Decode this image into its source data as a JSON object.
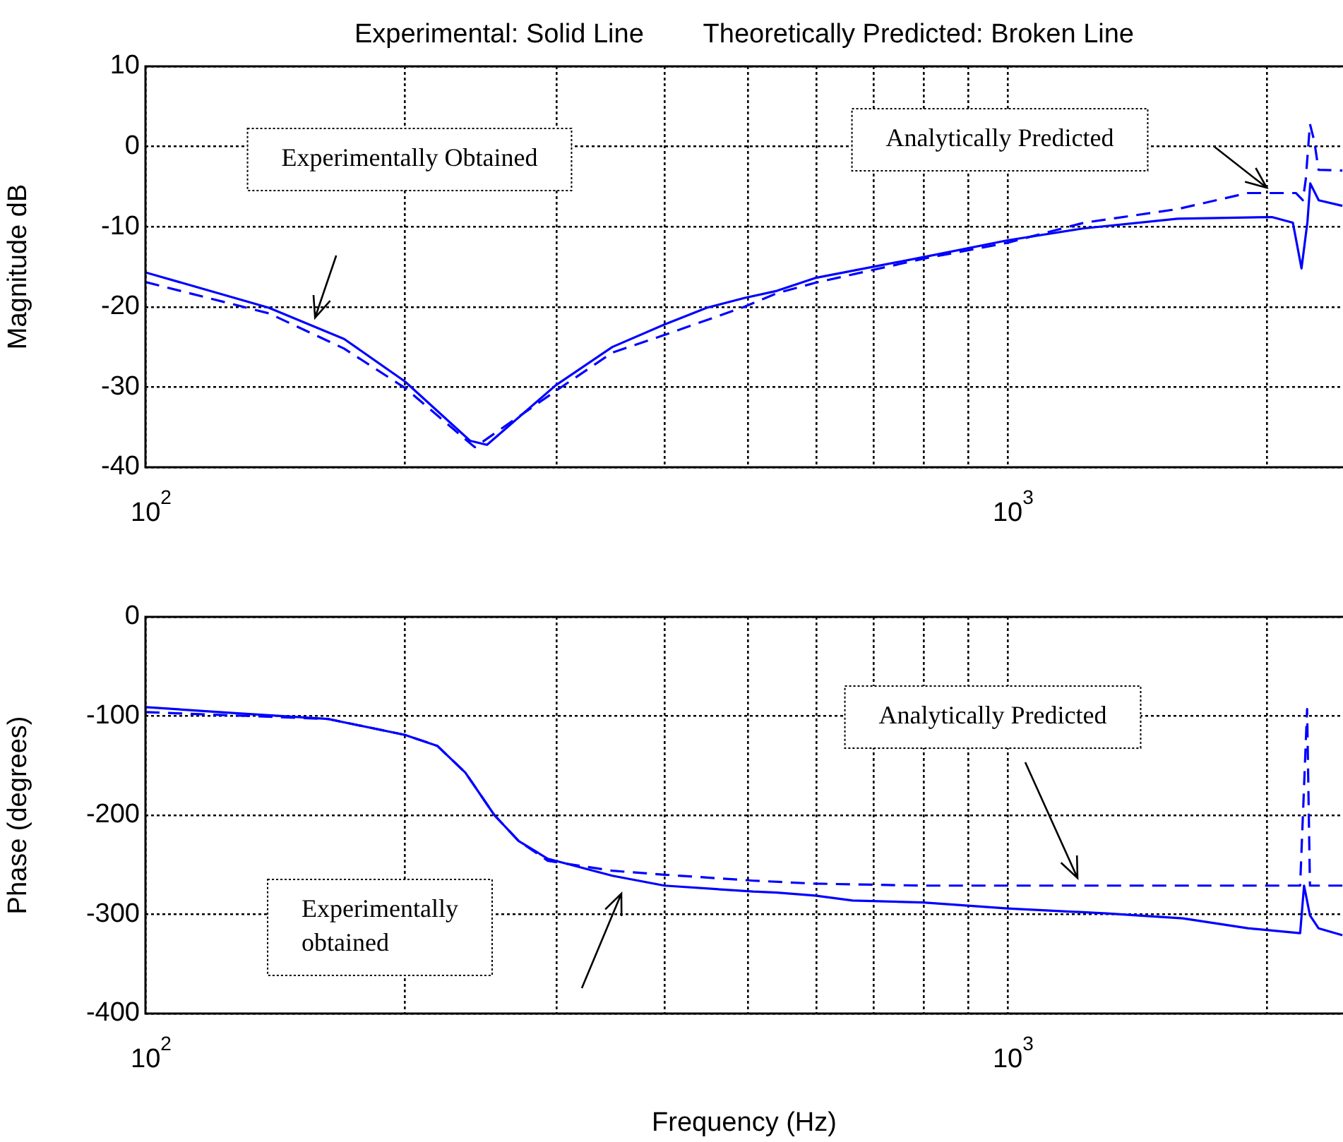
{
  "chart_data": [
    {
      "type": "line",
      "title": "Experimental: Solid Line        Theoretically Predicted: Broken Line",
      "ylabel": "Magnitude dB",
      "log": "x",
      "grid": true,
      "legend": false,
      "xlim": [
        100,
        2450
      ],
      "xticks": [
        {
          "value": 100,
          "label": "10$^{2}$"
        },
        {
          "value": 200,
          "label": null
        },
        {
          "value": 300,
          "label": null
        },
        {
          "value": 400,
          "label": null
        },
        {
          "value": 500,
          "label": null
        },
        {
          "value": 600,
          "label": null
        },
        {
          "value": 700,
          "label": null
        },
        {
          "value": 800,
          "label": null
        },
        {
          "value": 900,
          "label": null
        },
        {
          "value": 1000,
          "label": "10$^{3}$"
        },
        {
          "value": 2000,
          "label": null
        }
      ],
      "ylim": [
        -40,
        10
      ],
      "yticks": [
        -40,
        -30,
        -20,
        -10,
        0,
        10
      ],
      "series": [
        {
          "color": "#0000ff",
          "line_style": "solid",
          "x": [
            100,
            139,
            170,
            200,
            238,
            249,
            299,
            348,
            400,
            448,
            495,
            540,
            598,
            798,
            1000,
            1227,
            1575,
            2026,
            2143,
            2193,
            2228,
            2245,
            2296,
            2446
          ],
          "values": [
            -15.7,
            -20.1,
            -24.0,
            -29.3,
            -36.7,
            -37.2,
            -29.8,
            -25.0,
            -22.2,
            -20.1,
            -18.9,
            -18.0,
            -16.4,
            -13.8,
            -11.7,
            -10.2,
            -9.0,
            -8.8,
            -9.5,
            -15.2,
            -9.4,
            -4.6,
            -6.7,
            -7.4
          ]
        },
        {
          "color": "#0000ff",
          "line_style": "dashed",
          "x": [
            100,
            139,
            170,
            200,
            241,
            299,
            348,
            400,
            495,
            540,
            598,
            798,
            1000,
            1227,
            1575,
            1900,
            2160,
            2201,
            2218,
            2243,
            2269,
            2295,
            2446
          ],
          "values": [
            -16.9,
            -20.8,
            -25.2,
            -30.1,
            -37.5,
            -30.5,
            -25.7,
            -23.5,
            -20.0,
            -18.3,
            -17.0,
            -14.0,
            -12.0,
            -9.5,
            -7.8,
            -5.8,
            -5.8,
            -6.7,
            -4.1,
            2.8,
            0.7,
            -2.9,
            -3.0
          ]
        }
      ],
      "annotations": [
        "Experimentally Obtained",
        "Analytically Predicted"
      ]
    },
    {
      "type": "line",
      "xlabel": "Frequency (Hz)",
      "ylabel": "Phase (degrees)",
      "log": "x",
      "grid": true,
      "legend": false,
      "xlim": [
        100,
        2450
      ],
      "xticks": [
        {
          "value": 100,
          "label": "10$^{2}$"
        },
        {
          "value": 200,
          "label": null
        },
        {
          "value": 300,
          "label": null
        },
        {
          "value": 400,
          "label": null
        },
        {
          "value": 500,
          "label": null
        },
        {
          "value": 600,
          "label": null
        },
        {
          "value": 700,
          "label": null
        },
        {
          "value": 800,
          "label": null
        },
        {
          "value": 900,
          "label": null
        },
        {
          "value": 1000,
          "label": "10$^{3}$"
        },
        {
          "value": 2000,
          "label": null
        }
      ],
      "ylim": [
        -400,
        0
      ],
      "yticks": [
        -400,
        -300,
        -200,
        -100,
        0
      ],
      "series": [
        {
          "color": "#0000ff",
          "line_style": "solid",
          "x": [
            100,
            127,
            163,
            200,
            218,
            235,
            254,
            271,
            293,
            348,
            400,
            507,
            540,
            598,
            661,
            798,
            1000,
            1303,
            1597,
            1900,
            2185,
            2208,
            2243,
            2295,
            2446
          ],
          "values": [
            -91,
            -97,
            -103,
            -119,
            -130,
            -157,
            -200,
            -226,
            -244,
            -261,
            -271,
            -277,
            -278,
            -281,
            -286,
            -288,
            -294,
            -299,
            -304,
            -314,
            -319,
            -271,
            -301,
            -314,
            -321
          ]
        },
        {
          "color": "#0000ff",
          "line_style": "dashed",
          "x": [
            100,
            163,
            200,
            218,
            235,
            254,
            271,
            293,
            348,
            400,
            507,
            598,
            798,
            1000,
            2185,
            2226,
            2243,
            2446
          ],
          "values": [
            -96,
            -103,
            -119,
            -130,
            -157,
            -200,
            -226,
            -246,
            -256,
            -260,
            -266,
            -269,
            -271,
            -271,
            -271,
            -93,
            -271,
            -271
          ]
        }
      ],
      "annotations": [
        "Analytically Predicted",
        "Experimentally obtained"
      ]
    }
  ]
}
